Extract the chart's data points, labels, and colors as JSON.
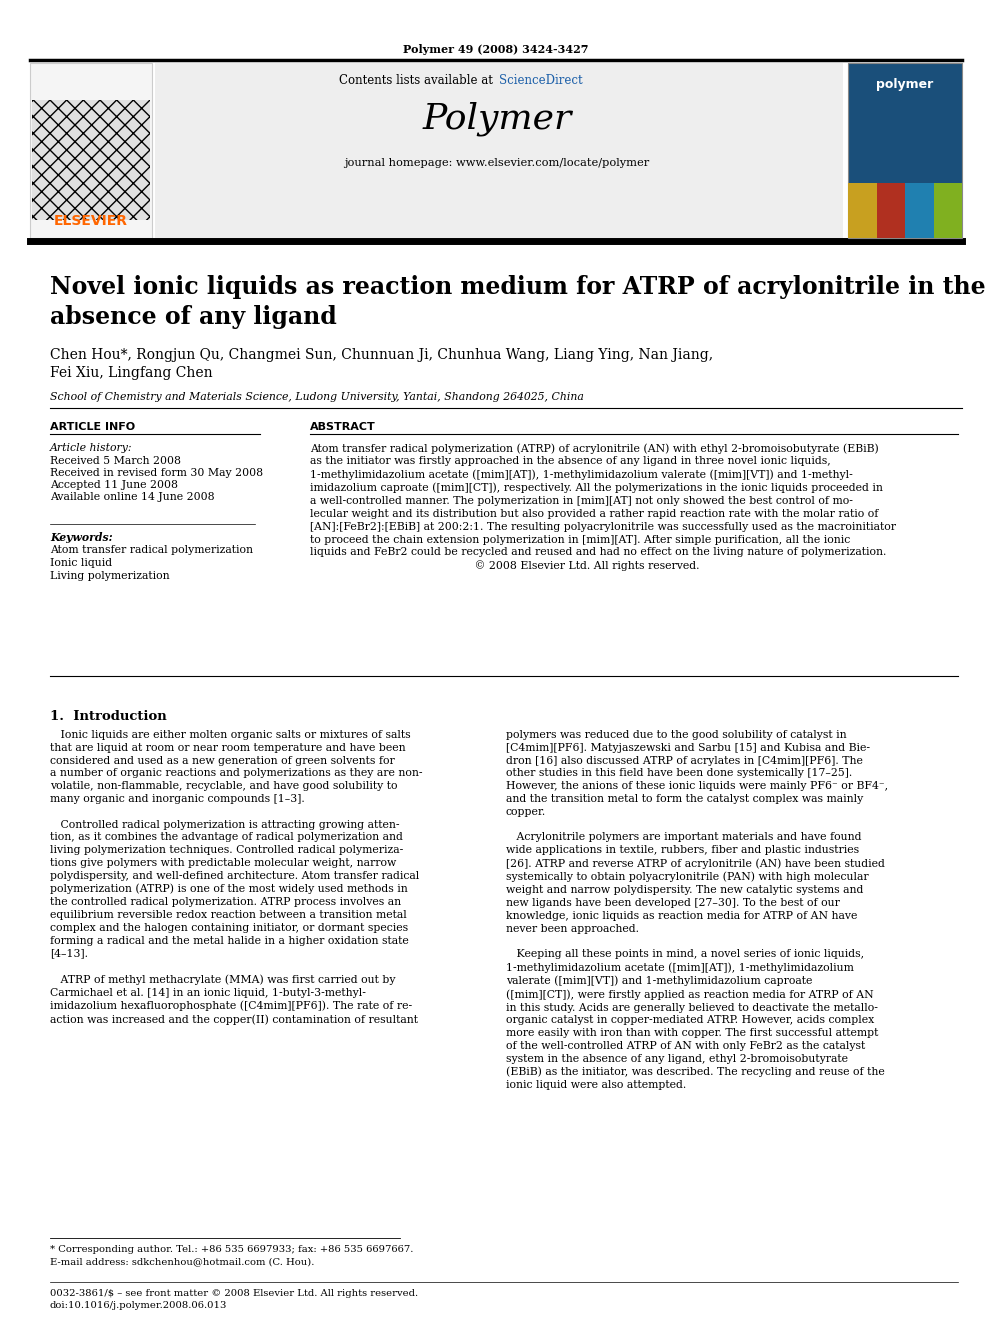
{
  "page_citation": "Polymer 49 (2008) 3424-3427",
  "journal_name": "Polymer",
  "contents_line_pre": "Contents lists available at ",
  "contents_line_link": "ScienceDirect",
  "homepage_line": "journal homepage: www.elsevier.com/locate/polymer",
  "article_title_line1": "Novel ionic liquids as reaction medium for ATRP of acrylonitrile in the",
  "article_title_line2": "absence of any ligand",
  "authors_line1": "Chen Hou*, Rongjun Qu, Changmei Sun, Chunnuan Ji, Chunhua Wang, Liang Ying, Nan Jiang,",
  "authors_line2": "Fei Xiu, Lingfang Chen",
  "affiliation": "School of Chemistry and Materials Science, Ludong University, Yantai, Shandong 264025, China",
  "article_info_header": "ARTICLE INFO",
  "abstract_header": "ABSTRACT",
  "article_history_label": "Article history:",
  "received": "Received 5 March 2008",
  "received_revised": "Received in revised form 30 May 2008",
  "accepted": "Accepted 11 June 2008",
  "available": "Available online 14 June 2008",
  "keywords_label": "Keywords:",
  "keywords": [
    "Atom transfer radical polymerization",
    "Ionic liquid",
    "Living polymerization"
  ],
  "abstract_text": "Atom transfer radical polymerization (ATRP) of acrylonitrile (AN) with ethyl 2-bromoisobutyrate (EBiB)\nas the initiator was firstly approached in the absence of any ligand in three novel ionic liquids,\n1-methylimidazolium acetate ([mim][AT]), 1-methylimidazolium valerate ([mim][VT]) and 1-methyl-\nimidazolium caproate ([mim][CT]), respectively. All the polymerizations in the ionic liquids proceeded in\na well-controlled manner. The polymerization in [mim][AT] not only showed the best control of mo-\nlecular weight and its distribution but also provided a rather rapid reaction rate with the molar ratio of\n[AN]:[FeBr2]:[EBiB] at 200:2:1. The resulting polyacrylonitrile was successfully used as the macroinitiator\nto proceed the chain extension polymerization in [mim][AT]. After simple purification, all the ionic\nliquids and FeBr2 could be recycled and reused and had no effect on the living nature of polymerization.\n                                               © 2008 Elsevier Ltd. All rights reserved.",
  "intro_header": "1.  Introduction",
  "intro_col1_p1": "   Ionic liquids are either molten organic salts or mixtures of salts\nthat are liquid at room or near room temperature and have been\nconsidered and used as a new generation of green solvents for\na number of organic reactions and polymerizations as they are non-\nvolatile, non-flammable, recyclable, and have good solubility to\nmany organic and inorganic compounds [1–3].",
  "intro_col1_p2": "   Controlled radical polymerization is attracting growing atten-\ntion, as it combines the advantage of radical polymerization and\nliving polymerization techniques. Controlled radical polymeriza-\ntions give polymers with predictable molecular weight, narrow\npolydispersity, and well-defined architecture. Atom transfer radical\npolymerization (ATRP) is one of the most widely used methods in\nthe controlled radical polymerization. ATRP process involves an\nequilibrium reversible redox reaction between a transition metal\ncomplex and the halogen containing initiator, or dormant species\nforming a radical and the metal halide in a higher oxidation state\n[4–13].",
  "intro_col1_p3": "   ATRP of methyl methacrylate (MMA) was first carried out by\nCarmichael et al. [14] in an ionic liquid, 1-butyl-3-methyl-\nimidazolium hexafluorophosphate ([C4mim][PF6]). The rate of re-\naction was increased and the copper(II) contamination of resultant",
  "intro_col2_p1": "polymers was reduced due to the good solubility of catalyst in\n[C4mim][PF6]. Matyjaszewski and Sarbu [15] and Kubisa and Bie-\ndron [16] also discussed ATRP of acrylates in [C4mim][PF6]. The\nother studies in this field have been done systemically [17–25].\nHowever, the anions of these ionic liquids were mainly PF6⁻ or BF4⁻,\nand the transition metal to form the catalyst complex was mainly\ncopper.",
  "intro_col2_p2": "   Acrylonitrile polymers are important materials and have found\nwide applications in textile, rubbers, fiber and plastic industries\n[26]. ATRP and reverse ATRP of acrylonitrile (AN) have been studied\nsystemically to obtain polyacrylonitrile (PAN) with high molecular\nweight and narrow polydispersity. The new catalytic systems and\nnew ligands have been developed [27–30]. To the best of our\nknowledge, ionic liquids as reaction media for ATRP of AN have\nnever been approached.",
  "intro_col2_p3": "   Keeping all these points in mind, a novel series of ionic liquids,\n1-methylimidazolium acetate ([mim][AT]), 1-methylimidazolium\nvalerate ([mim][VT]) and 1-methylimidazolium caproate\n([mim][CT]), were firstly applied as reaction media for ATRP of AN\nin this study. Acids are generally believed to deactivate the metallo-\norganic catalyst in copper-mediated ATRP. However, acids complex\nmore easily with iron than with copper. The first successful attempt\nof the well-controlled ATRP of AN with only FeBr2 as the catalyst\nsystem in the absence of any ligand, ethyl 2-bromoisobutyrate\n(EBiB) as the initiator, was described. The recycling and reuse of the\nionic liquid were also attempted.",
  "footnote_star": "* Corresponding author. Tel.: +86 535 6697933; fax: +86 535 6697667.",
  "footnote_email": "E-mail address: sdkchenhou@hotmail.com (C. Hou).",
  "footer_line1": "0032-3861/$ – see front matter © 2008 Elsevier Ltd. All rights reserved.",
  "footer_line2": "doi:10.1016/j.polymer.2008.06.013",
  "bg_color": "#ffffff",
  "header_bg": "#eeeeee",
  "elsevier_orange": "#FF6600",
  "scidir_blue": "#1a5ea8",
  "polymer_cover_blue": "#1a4f7a",
  "cover_strip_colors": [
    "#c8a020",
    "#b03020",
    "#2080b0",
    "#80b020"
  ]
}
